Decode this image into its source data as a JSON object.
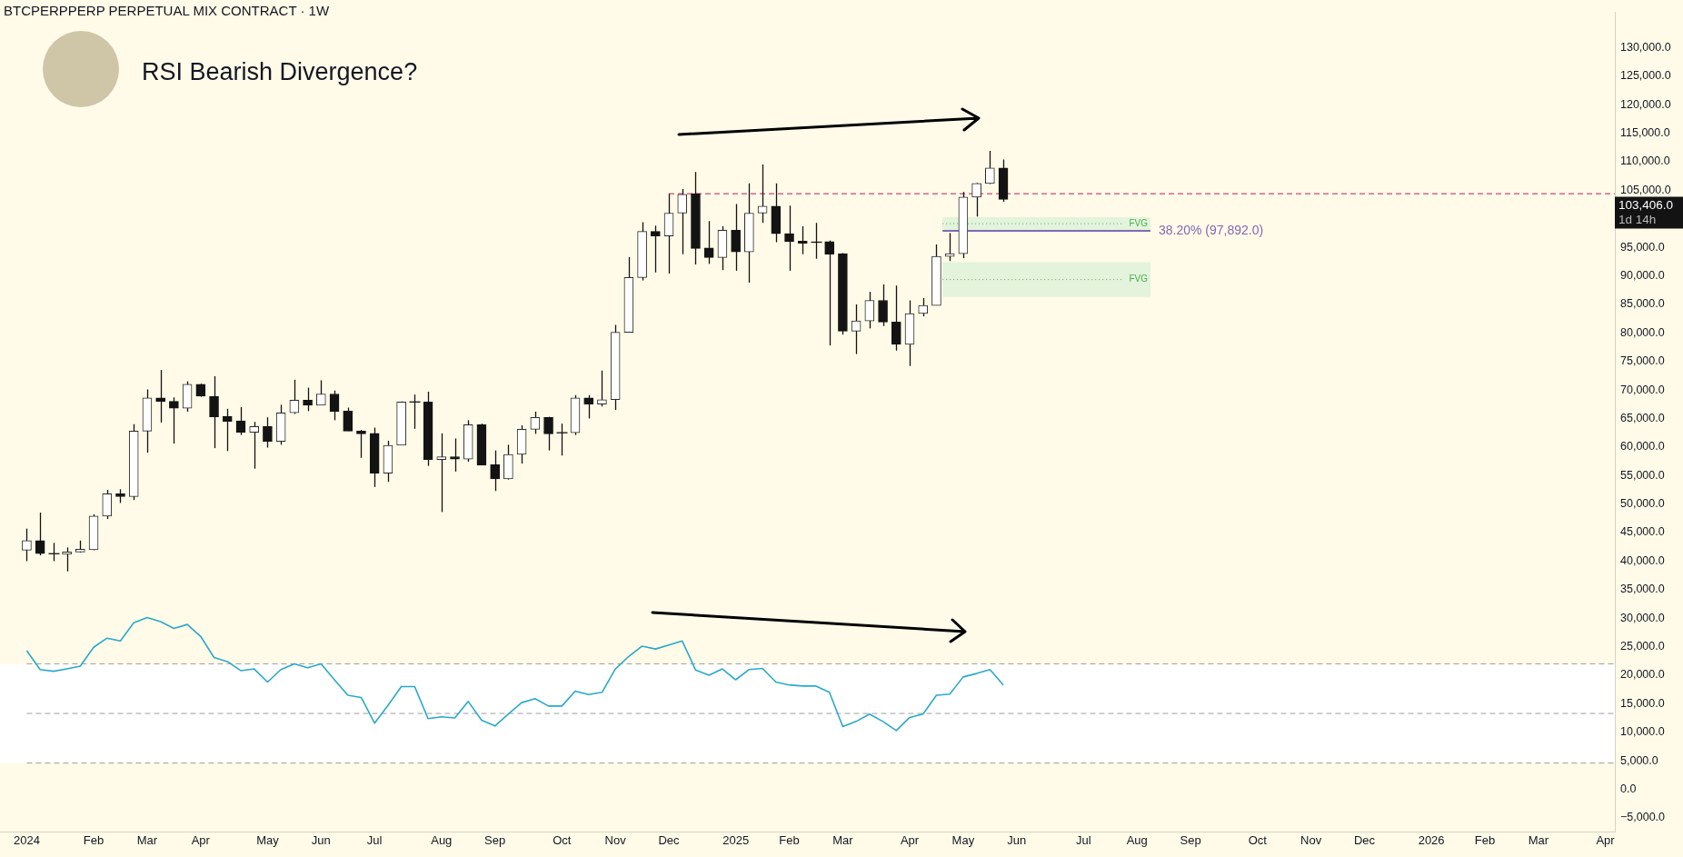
{
  "chart_data": {
    "type": "candlestick",
    "title": "BTCPERPPERP PERPETUAL MIX CONTRACT · 1W",
    "subtitle": "RSI Bearish Divergence?",
    "x": [
      "2024-01-01",
      "2024-01-08",
      "2024-01-15",
      "2024-01-22",
      "2024-01-29",
      "2024-02-05",
      "2024-02-12",
      "2024-02-19",
      "2024-02-26",
      "2024-03-04",
      "2024-03-11",
      "2024-03-18",
      "2024-03-25",
      "2024-04-01",
      "2024-04-08",
      "2024-04-15",
      "2024-04-22",
      "2024-04-29",
      "2024-05-06",
      "2024-05-13",
      "2024-05-20",
      "2024-05-27",
      "2024-06-03",
      "2024-06-10",
      "2024-06-17",
      "2024-06-24",
      "2024-07-01",
      "2024-07-08",
      "2024-07-15",
      "2024-07-22",
      "2024-07-29",
      "2024-08-05",
      "2024-08-12",
      "2024-08-19",
      "2024-08-26",
      "2024-09-02",
      "2024-09-09",
      "2024-09-16",
      "2024-09-23",
      "2024-09-30",
      "2024-10-07",
      "2024-10-14",
      "2024-10-21",
      "2024-10-28",
      "2024-11-04",
      "2024-11-11",
      "2024-11-18",
      "2024-11-25",
      "2024-12-02",
      "2024-12-09",
      "2024-12-16",
      "2024-12-23",
      "2024-12-30",
      "2025-01-06",
      "2025-01-13",
      "2025-01-20",
      "2025-01-27",
      "2025-02-03",
      "2025-02-10",
      "2025-02-17",
      "2025-02-24",
      "2025-03-03",
      "2025-03-10",
      "2025-03-17",
      "2025-03-24",
      "2025-03-31",
      "2025-04-07",
      "2025-04-14",
      "2025-04-21",
      "2025-04-28",
      "2025-05-05",
      "2025-05-12",
      "2025-05-19",
      "2025-05-26"
    ],
    "ohlc": [
      [
        41900,
        45700,
        40000,
        43600
      ],
      [
        43600,
        48500,
        41000,
        41300
      ],
      [
        41300,
        43200,
        40000,
        41300
      ],
      [
        41200,
        42400,
        38200,
        41600
      ],
      [
        41600,
        43600,
        41500,
        42100
      ],
      [
        42000,
        48200,
        41900,
        47900
      ],
      [
        47900,
        52500,
        47400,
        51800
      ],
      [
        51800,
        52600,
        50200,
        51300
      ],
      [
        51300,
        64000,
        50700,
        62800
      ],
      [
        62800,
        70100,
        59000,
        68600
      ],
      [
        68600,
        73500,
        64300,
        68000
      ],
      [
        68000,
        68700,
        60600,
        66800
      ],
      [
        66800,
        71500,
        66200,
        71000
      ],
      [
        71000,
        71100,
        68800,
        68900
      ],
      [
        68900,
        72400,
        59800,
        65300
      ],
      [
        65400,
        66700,
        59300,
        64500
      ],
      [
        64600,
        67000,
        62100,
        62600
      ],
      [
        62600,
        64400,
        56200,
        63600
      ],
      [
        63600,
        65200,
        59900,
        61000
      ],
      [
        61000,
        67400,
        60400,
        66000
      ],
      [
        66000,
        71800,
        65800,
        68200
      ],
      [
        68200,
        70400,
        66300,
        67300
      ],
      [
        67300,
        71700,
        67300,
        69300
      ],
      [
        69300,
        69900,
        64700,
        66200
      ],
      [
        66300,
        66900,
        62800,
        62800
      ],
      [
        62800,
        63000,
        58100,
        62300
      ],
      [
        62400,
        63400,
        53000,
        55400
      ],
      [
        55400,
        61100,
        53900,
        60300
      ],
      [
        60300,
        68000,
        60300,
        67900
      ],
      [
        67900,
        69200,
        63200,
        67900
      ],
      [
        67900,
        69700,
        56700,
        57800
      ],
      [
        57800,
        62400,
        48600,
        58300
      ],
      [
        58300,
        61500,
        55700,
        57900
      ],
      [
        57900,
        64700,
        57400,
        63900
      ],
      [
        63900,
        64100,
        56800,
        56800
      ],
      [
        56900,
        59400,
        52300,
        54400
      ],
      [
        54400,
        60400,
        54300,
        58700
      ],
      [
        58700,
        63800,
        57100,
        63100
      ],
      [
        63100,
        66200,
        62300,
        65200
      ],
      [
        65200,
        65300,
        59400,
        62300
      ],
      [
        62500,
        64100,
        58500,
        62500
      ],
      [
        62500,
        69100,
        62100,
        68600
      ],
      [
        68600,
        69100,
        65000,
        67500
      ],
      [
        67500,
        73400,
        67100,
        68300
      ],
      [
        68300,
        81400,
        66500,
        80100
      ],
      [
        80100,
        93300,
        80100,
        89700
      ],
      [
        89700,
        99400,
        89200,
        97800
      ],
      [
        97800,
        98800,
        90600,
        97000
      ],
      [
        97000,
        104400,
        90400,
        101000
      ],
      [
        101000,
        105200,
        93800,
        104300
      ],
      [
        104400,
        108200,
        92000,
        94800
      ],
      [
        94900,
        99600,
        92100,
        93200
      ],
      [
        93200,
        98700,
        91000,
        98000
      ],
      [
        98000,
        102600,
        90900,
        94200
      ],
      [
        94200,
        106200,
        88800,
        101000
      ],
      [
        101000,
        109500,
        99300,
        102200
      ],
      [
        102200,
        106200,
        95900,
        97400
      ],
      [
        97400,
        102300,
        90900,
        96000
      ],
      [
        96100,
        98700,
        93800,
        95700
      ],
      [
        95900,
        99300,
        93000,
        95900
      ],
      [
        96000,
        96200,
        77800,
        93800
      ],
      [
        93900,
        94000,
        79700,
        80300
      ],
      [
        80300,
        85000,
        76300,
        82100
      ],
      [
        82100,
        87200,
        80800,
        85700
      ],
      [
        85700,
        88500,
        81200,
        81900
      ],
      [
        81900,
        88300,
        76900,
        78000
      ],
      [
        78000,
        85700,
        74200,
        83400
      ],
      [
        83400,
        86100,
        82900,
        84800
      ],
      [
        84800,
        95500,
        84800,
        93400
      ],
      [
        93400,
        97500,
        92600,
        93900
      ],
      [
        93900,
        104700,
        93100,
        103800
      ],
      [
        103800,
        106300,
        100400,
        106200
      ],
      [
        106200,
        111900,
        106100,
        108900
      ],
      [
        108900,
        110400,
        103000,
        103406
      ]
    ],
    "series": [
      {
        "type": "line",
        "color": "#2aa9c9",
        "values": [
          24300,
          21000,
          20700,
          21100,
          21600,
          24900,
          26500,
          26000,
          29200,
          30100,
          29400,
          28200,
          28900,
          26800,
          23100,
          22400,
          20800,
          21100,
          18800,
          21000,
          22000,
          21300,
          22000,
          19200,
          16500,
          16100,
          11600,
          14700,
          18000,
          18000,
          12400,
          12700,
          12500,
          15400,
          12100,
          11100,
          13200,
          15200,
          15900,
          14600,
          14600,
          17200,
          16600,
          17000,
          21100,
          23300,
          25100,
          24600,
          25300,
          26000,
          20900,
          20000,
          21100,
          19200,
          21000,
          21200,
          18800,
          18300,
          18100,
          18100,
          17000,
          11000,
          11900,
          13200,
          11900,
          10300,
          12600,
          13200,
          16500,
          16700,
          19700,
          20300,
          21000,
          18300
        ]
      }
    ],
    "xlim": [
      "2023-12-18",
      "2026-04-11"
    ],
    "xticks": [
      {
        "value": "2024-01-01",
        "label": "2024"
      },
      {
        "value": "2024-02-05",
        "label": "Feb"
      },
      {
        "value": "2024-03-04",
        "label": "Mar"
      },
      {
        "value": "2024-04-01",
        "label": "Apr"
      },
      {
        "value": "2024-05-06",
        "label": "May"
      },
      {
        "value": "2024-06-03",
        "label": "Jun"
      },
      {
        "value": "2024-07-01",
        "label": "Jul"
      },
      {
        "value": "2024-08-05",
        "label": "Aug"
      },
      {
        "value": "2024-09-02",
        "label": "Sep"
      },
      {
        "value": "2024-10-07",
        "label": "Oct"
      },
      {
        "value": "2024-11-04",
        "label": "Nov"
      },
      {
        "value": "2024-12-02",
        "label": "Dec"
      },
      {
        "value": "2025-01-06",
        "label": "2025"
      },
      {
        "value": "2025-02-03",
        "label": "Feb"
      },
      {
        "value": "2025-03-03",
        "label": "Mar"
      },
      {
        "value": "2025-04-07",
        "label": "Apr"
      },
      {
        "value": "2025-05-05",
        "label": "May"
      },
      {
        "value": "2025-06-02",
        "label": "Jun"
      },
      {
        "value": "2025-07-07",
        "label": "Jul"
      },
      {
        "value": "2025-08-04",
        "label": "Aug"
      },
      {
        "value": "2025-09-01",
        "label": "Sep"
      },
      {
        "value": "2025-10-06",
        "label": "Oct"
      },
      {
        "value": "2025-11-03",
        "label": "Nov"
      },
      {
        "value": "2025-12-01",
        "label": "Dec"
      },
      {
        "value": "2026-01-05",
        "label": "2026"
      },
      {
        "value": "2026-02-02",
        "label": "Feb"
      },
      {
        "value": "2026-03-02",
        "label": "Mar"
      },
      {
        "value": "2026-04-06",
        "label": "Apr"
      }
    ],
    "ylim": [
      -7400,
      136200
    ],
    "yticks": [
      {
        "value": -5000,
        "label": "−5,000.0"
      },
      {
        "value": 0,
        "label": "0.0"
      },
      {
        "value": 5000,
        "label": "5,000.0"
      },
      {
        "value": 10000,
        "label": "10,000.0"
      },
      {
        "value": 15000,
        "label": "15,000.0"
      },
      {
        "value": 20000,
        "label": "20,000.0"
      },
      {
        "value": 25000,
        "label": "25,000.0"
      },
      {
        "value": 30000,
        "label": "30,000.0"
      },
      {
        "value": 35000,
        "label": "35,000.0"
      },
      {
        "value": 40000,
        "label": "40,000.0"
      },
      {
        "value": 45000,
        "label": "45,000.0"
      },
      {
        "value": 50000,
        "label": "50,000.0"
      },
      {
        "value": 55000,
        "label": "55,000.0"
      },
      {
        "value": 60000,
        "label": "60,000.0"
      },
      {
        "value": 65000,
        "label": "65,000.0"
      },
      {
        "value": 70000,
        "label": "70,000.0"
      },
      {
        "value": 75000,
        "label": "75,000.0"
      },
      {
        "value": 80000,
        "label": "80,000.0"
      },
      {
        "value": 85000,
        "label": "85,000.0"
      },
      {
        "value": 90000,
        "label": "90,000.0"
      },
      {
        "value": 95000,
        "label": "95,000.0"
      },
      {
        "value": 105000,
        "label": "105,000.0"
      },
      {
        "value": 110000,
        "label": "110,000.0"
      },
      {
        "value": 115000,
        "label": "115,000.0"
      },
      {
        "value": 120000,
        "label": "120,000.0"
      },
      {
        "value": 125000,
        "label": "125,000.0"
      },
      {
        "value": 130000,
        "label": "130,000.0"
      }
    ],
    "ref_lines": [
      {
        "axis": "y",
        "value": 104400,
        "color": "#c2185b",
        "line_style": "dashed"
      },
      {
        "axis": "y",
        "value": 97892,
        "label": "38.20% (97,892.0)",
        "color": "#7e6bb3",
        "line_style": "solid"
      },
      {
        "axis": "y",
        "value": 22000,
        "color": "#9e9e9e",
        "line_style": "dashed"
      },
      {
        "axis": "y",
        "value": 13300,
        "color": "#9e9e9e",
        "line_style": "dashed"
      },
      {
        "axis": "y",
        "value": 4600,
        "color": "#9e9e9e",
        "line_style": "dashed"
      }
    ],
    "bands": [
      {
        "axis": "y",
        "from": 4600,
        "to": 22000,
        "color": "#ffffff"
      },
      {
        "axis": "y",
        "from": 98000,
        "to": 100300,
        "label": "FVG",
        "color": "#e3f3dc"
      },
      {
        "axis": "y",
        "from": 86300,
        "to": 92400,
        "label": "FVG",
        "color": "#e3f3dc"
      }
    ],
    "annotations": [
      "103,406.0",
      "1d 14h"
    ],
    "legend": false
  }
}
